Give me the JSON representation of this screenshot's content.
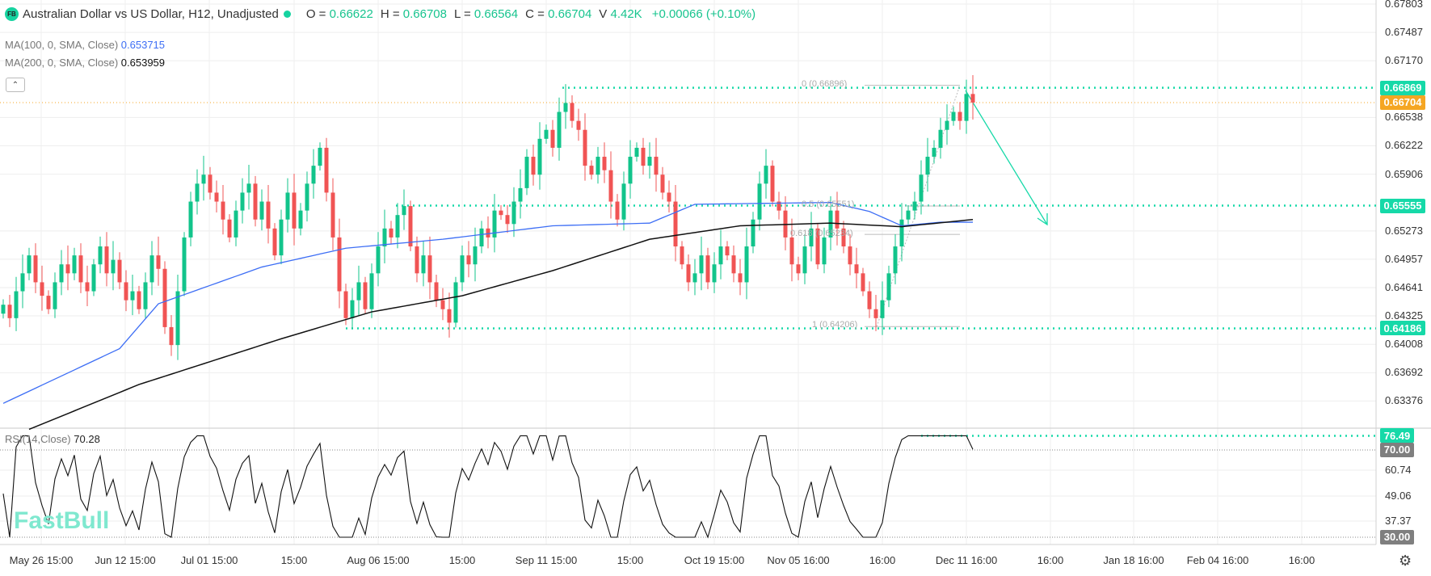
{
  "header": {
    "logo": "FB",
    "title": "Australian Dollar vs US Dollar, H12, Unadjusted",
    "ohlc": [
      {
        "key": "O =",
        "value": "0.66622"
      },
      {
        "key": "H =",
        "value": "0.66708"
      },
      {
        "key": "L =",
        "value": "0.66564"
      },
      {
        "key": "C =",
        "value": "0.66704"
      },
      {
        "key": "V",
        "value": "4.42K"
      }
    ],
    "change": "+0.00066 (+0.10%)"
  },
  "indicators": {
    "ma100": {
      "label": "MA(100, 0, SMA, Close)",
      "value": "0.653715",
      "color": "#3d6ef5"
    },
    "ma200": {
      "label": "MA(200, 0, SMA, Close)",
      "value": "0.653959",
      "color": "#111111"
    },
    "rsi": {
      "label": "RSI(14,Close)",
      "value": "70.28"
    }
  },
  "watermark": "FastBull",
  "price_axis": [
    "0.67803",
    "0.67487",
    "0.67170",
    "0.66538",
    "0.66222",
    "0.65906",
    "0.65273",
    "0.64957",
    "0.64641",
    "0.64325",
    "0.64008",
    "0.63692",
    "0.63376"
  ],
  "price_tags": [
    {
      "value": "0.66869",
      "color": "#16d9a8"
    },
    {
      "value": "0.66704",
      "color": "#f5a623"
    },
    {
      "value": "0.65555",
      "color": "#16d9a8"
    },
    {
      "value": "0.64186",
      "color": "#16d9a8"
    }
  ],
  "rsi_axis": [
    "60.74",
    "49.06",
    "37.37"
  ],
  "rsi_tags": [
    {
      "value": "76.49",
      "color": "#16d9a8"
    },
    {
      "value": "70.00",
      "color": "#7f7f7f"
    },
    {
      "value": "30.00",
      "color": "#7f7f7f"
    }
  ],
  "time_axis": [
    "May 26 15:00",
    "Jun 12 15:00",
    "Jul 01 15:00",
    "15:00",
    "Aug 06 15:00",
    "15:00",
    "Sep 11 15:00",
    "15:00",
    "Oct 19 15:00",
    "Nov 05 16:00",
    "16:00",
    "Dec 11 16:00",
    "16:00",
    "Jan 18 16:00",
    "Feb 04 16:00",
    "16:00"
  ],
  "fib_labels": [
    "0 (0.66896)",
    "0.5 (0.65551)",
    "0.618 (0.65234)",
    "1 (0.64206)"
  ],
  "chart_data": {
    "type": "candlestick",
    "timeframe": "H12",
    "up_color": "#12c48b",
    "down_color": "#f05454",
    "closes": [
      0.6445,
      0.643,
      0.646,
      0.648,
      0.65,
      0.647,
      0.6455,
      0.644,
      0.647,
      0.649,
      0.648,
      0.65,
      0.647,
      0.646,
      0.649,
      0.651,
      0.648,
      0.6495,
      0.647,
      0.645,
      0.646,
      0.644,
      0.647,
      0.65,
      0.6485,
      0.642,
      0.64,
      0.646,
      0.652,
      0.656,
      0.658,
      0.659,
      0.657,
      0.656,
      0.654,
      0.652,
      0.655,
      0.657,
      0.658,
      0.654,
      0.656,
      0.653,
      0.65,
      0.654,
      0.657,
      0.653,
      0.655,
      0.658,
      0.66,
      0.662,
      0.657,
      0.652,
      0.646,
      0.643,
      0.645,
      0.647,
      0.644,
      0.648,
      0.651,
      0.653,
      0.652,
      0.6545,
      0.6555,
      0.651,
      0.648,
      0.65,
      0.647,
      0.645,
      0.644,
      0.6425,
      0.647,
      0.65,
      0.649,
      0.651,
      0.653,
      0.652,
      0.655,
      0.6545,
      0.6535,
      0.656,
      0.6575,
      0.661,
      0.659,
      0.663,
      0.664,
      0.662,
      0.666,
      0.667,
      0.665,
      0.664,
      0.66,
      0.659,
      0.661,
      0.6595,
      0.656,
      0.654,
      0.658,
      0.661,
      0.662,
      0.66,
      0.661,
      0.659,
      0.657,
      0.656,
      0.651,
      0.649,
      0.647,
      0.648,
      0.65,
      0.647,
      0.649,
      0.651,
      0.65,
      0.648,
      0.647,
      0.651,
      0.654,
      0.658,
      0.66,
      0.656,
      0.655,
      0.652,
      0.649,
      0.648,
      0.651,
      0.653,
      0.649,
      0.652,
      0.655,
      0.653,
      0.651,
      0.649,
      0.648,
      0.646,
      0.644,
      0.643,
      0.645,
      0.648,
      0.651,
      0.654,
      0.655,
      0.656,
      0.659,
      0.661,
      0.662,
      0.664,
      0.665,
      0.666,
      0.665,
      0.668,
      0.66704
    ],
    "ma100": [
      [
        0,
        0.6335
      ],
      [
        18,
        0.6396
      ],
      [
        24,
        0.6446
      ],
      [
        40,
        0.6487
      ],
      [
        53,
        0.6508
      ],
      [
        68,
        0.6518
      ],
      [
        85,
        0.6533
      ],
      [
        100,
        0.6536
      ],
      [
        107,
        0.6557
      ],
      [
        128,
        0.6559
      ],
      [
        134,
        0.6549
      ],
      [
        139,
        0.6533
      ],
      [
        145,
        0.6537
      ],
      [
        150,
        0.6537
      ]
    ],
    "ma200": [
      [
        4,
        0.6306
      ],
      [
        21,
        0.6356
      ],
      [
        43,
        0.6407
      ],
      [
        57,
        0.6437
      ],
      [
        71,
        0.6455
      ],
      [
        85,
        0.6483
      ],
      [
        100,
        0.6518
      ],
      [
        114,
        0.6533
      ],
      [
        128,
        0.6536
      ],
      [
        139,
        0.6532
      ],
      [
        150,
        0.654
      ]
    ],
    "levels": {
      "fib_high": 0.66869,
      "fib_mid": 0.65555,
      "fib_low": 0.64186,
      "last": 0.66704,
      "fib_0": 0.66896,
      "fib_05": 0.65551,
      "fib_0618": 0.65234,
      "fib_1": 0.64206
    },
    "price_range": [
      0.63376,
      0.67803
    ],
    "rsi_levels": [
      30,
      70,
      76.49
    ]
  }
}
